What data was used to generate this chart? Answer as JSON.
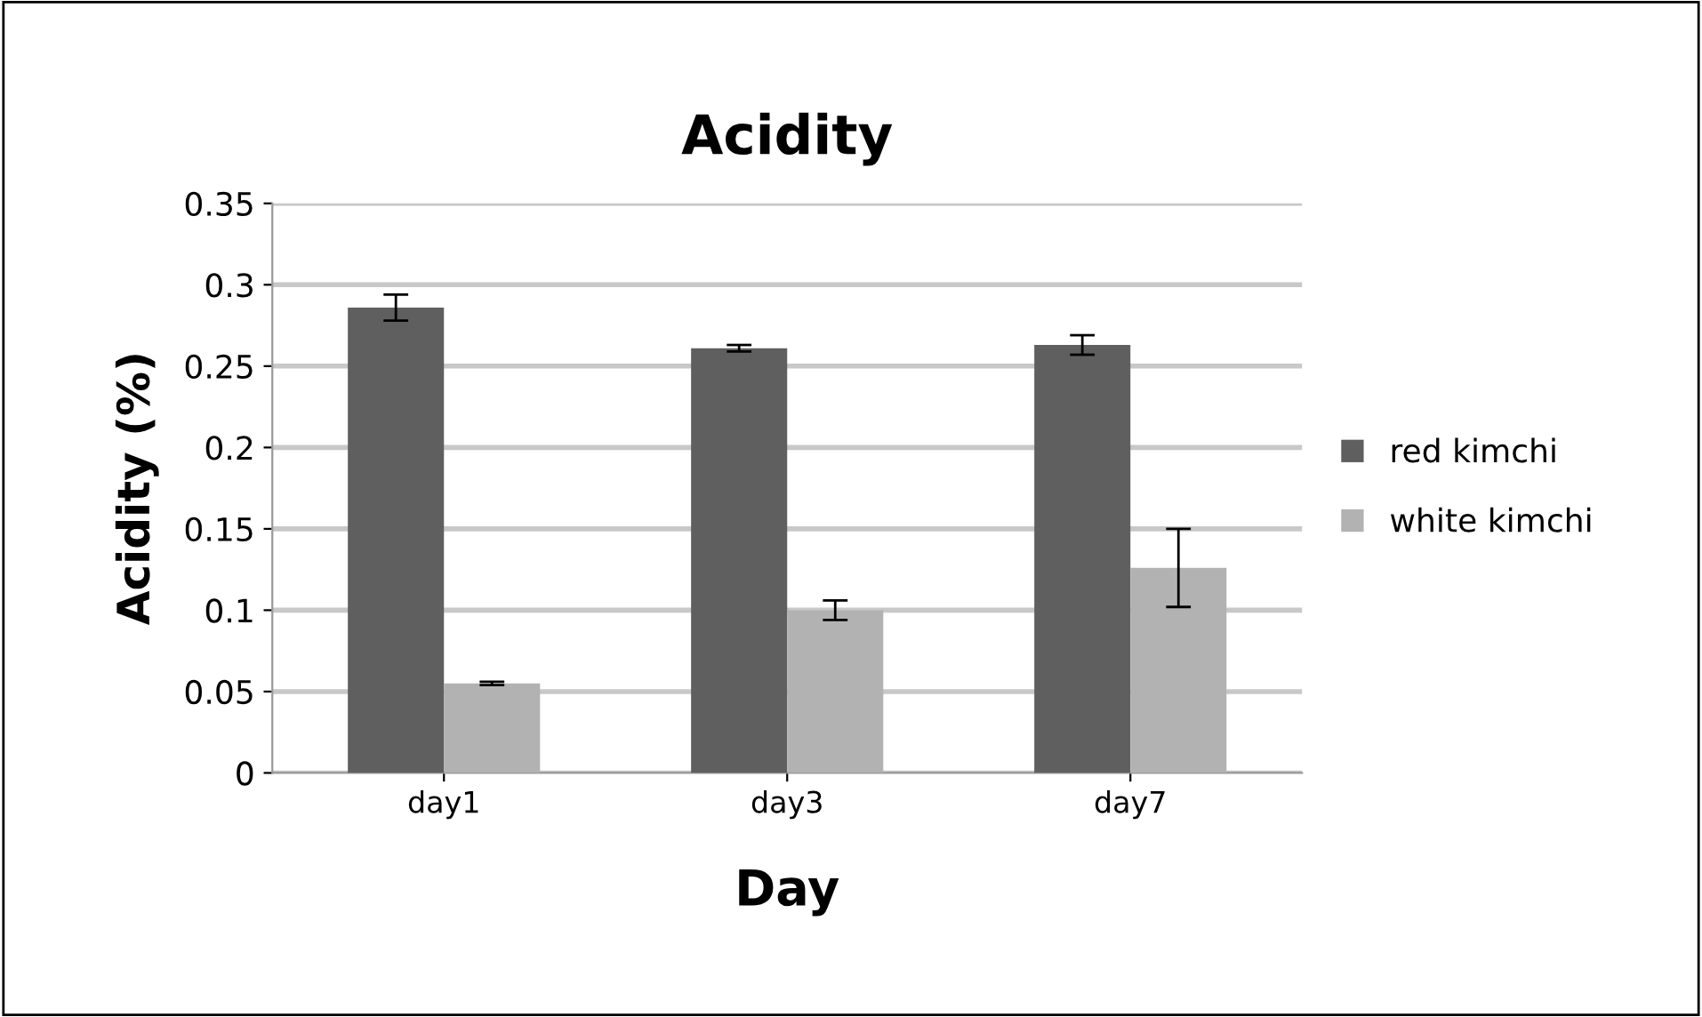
{
  "chart_data": {
    "type": "bar",
    "title": "Acidity",
    "xlabel": "Day",
    "ylabel": "Acidity (%)",
    "categories": [
      "day1",
      "day3",
      "day7"
    ],
    "series": [
      {
        "name": "red kimchi",
        "color": "#5f5f5f",
        "values": [
          0.286,
          0.261,
          0.263
        ],
        "errors": [
          0.008,
          0.002,
          0.006
        ]
      },
      {
        "name": "white kimchi",
        "color": "#b2b2b2",
        "values": [
          0.055,
          0.1,
          0.126
        ],
        "errors": [
          0.001,
          0.006,
          0.024
        ]
      }
    ],
    "ylim": [
      0,
      0.35
    ],
    "yticks": [
      0,
      0.05,
      0.1,
      0.15,
      0.2,
      0.25,
      0.3,
      0.35
    ],
    "grid": "y",
    "legend": "right"
  }
}
